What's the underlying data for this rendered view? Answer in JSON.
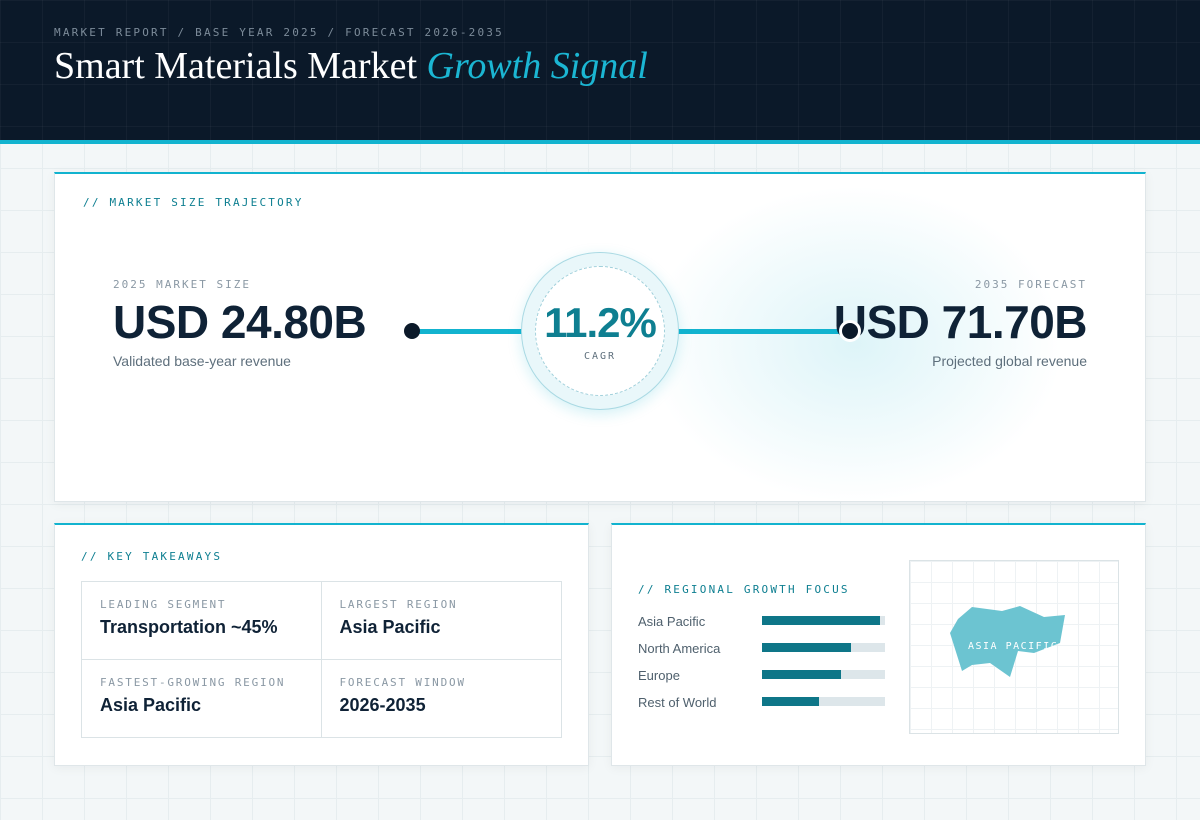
{
  "header": {
    "breadcrumb": "MARKET REPORT / BASE YEAR 2025 / FORECAST 2026-2035",
    "title_main": "Smart Materials Market",
    "title_accent": "Growth Signal"
  },
  "trajectory": {
    "section_label": "// MARKET SIZE TRAJECTORY",
    "base": {
      "label": "2025 MARKET SIZE",
      "value": "USD 24.80B",
      "caption": "Validated base-year revenue"
    },
    "forecast": {
      "label": "2035 FORECAST",
      "value": "USD 71.70B",
      "caption": "Projected global revenue"
    },
    "cagr": {
      "value": "11.2%",
      "label": "CAGR"
    }
  },
  "takeaways": {
    "section_label": "// KEY TAKEAWAYS",
    "items": [
      {
        "label": "LEADING SEGMENT",
        "value": "Transportation ~45%"
      },
      {
        "label": "LARGEST REGION",
        "value": "Asia Pacific"
      },
      {
        "label": "FASTEST-GROWING REGION",
        "value": "Asia Pacific"
      },
      {
        "label": "FORECAST WINDOW",
        "value": "2026-2035"
      }
    ]
  },
  "regional": {
    "section_label": "// REGIONAL GROWTH FOCUS",
    "regions": [
      {
        "name": "Asia Pacific",
        "share": 0.96
      },
      {
        "name": "North America",
        "share": 0.72
      },
      {
        "name": "Europe",
        "share": 0.64
      },
      {
        "name": "Rest of World",
        "share": 0.46
      }
    ],
    "map_label": "ASIA PACIFIC",
    "colors": {
      "bar_fill": "#0e7688",
      "bar_track": "#dde6ea",
      "map_region": "#6cc4d1"
    }
  },
  "theme": {
    "accent": "#12b3cf",
    "dark": "#0b1929",
    "teal": "#0e7f91"
  }
}
